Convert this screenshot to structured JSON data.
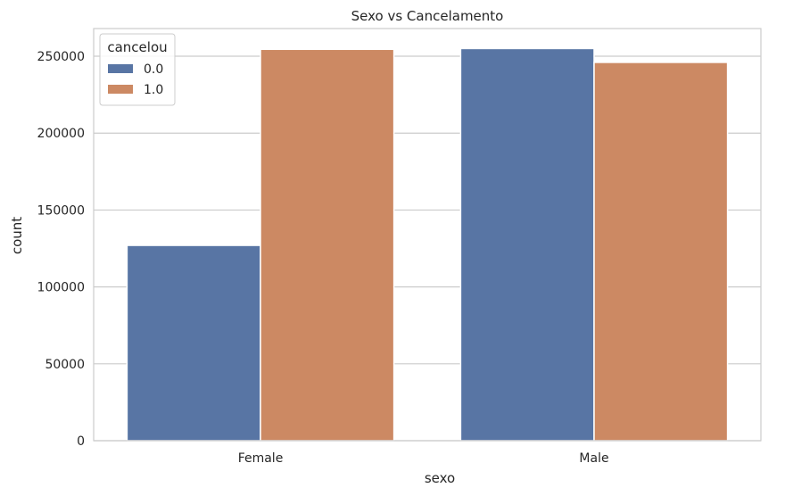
{
  "chart_data": {
    "type": "bar",
    "title": "Sexo vs Cancelamento",
    "xlabel": "sexo",
    "ylabel": "count",
    "categories": [
      "Female",
      "Male"
    ],
    "series": [
      {
        "name": "0.0",
        "color": "#5875a4",
        "values": [
          127000,
          255000
        ]
      },
      {
        "name": "1.0",
        "color": "#cc8963",
        "values": [
          254500,
          246000
        ]
      }
    ],
    "ylim": [
      0,
      268000
    ],
    "yticks": [
      0,
      50000,
      100000,
      150000,
      200000,
      250000
    ],
    "grid": true,
    "legend": {
      "title": "cancelou",
      "position": "top-left"
    }
  }
}
